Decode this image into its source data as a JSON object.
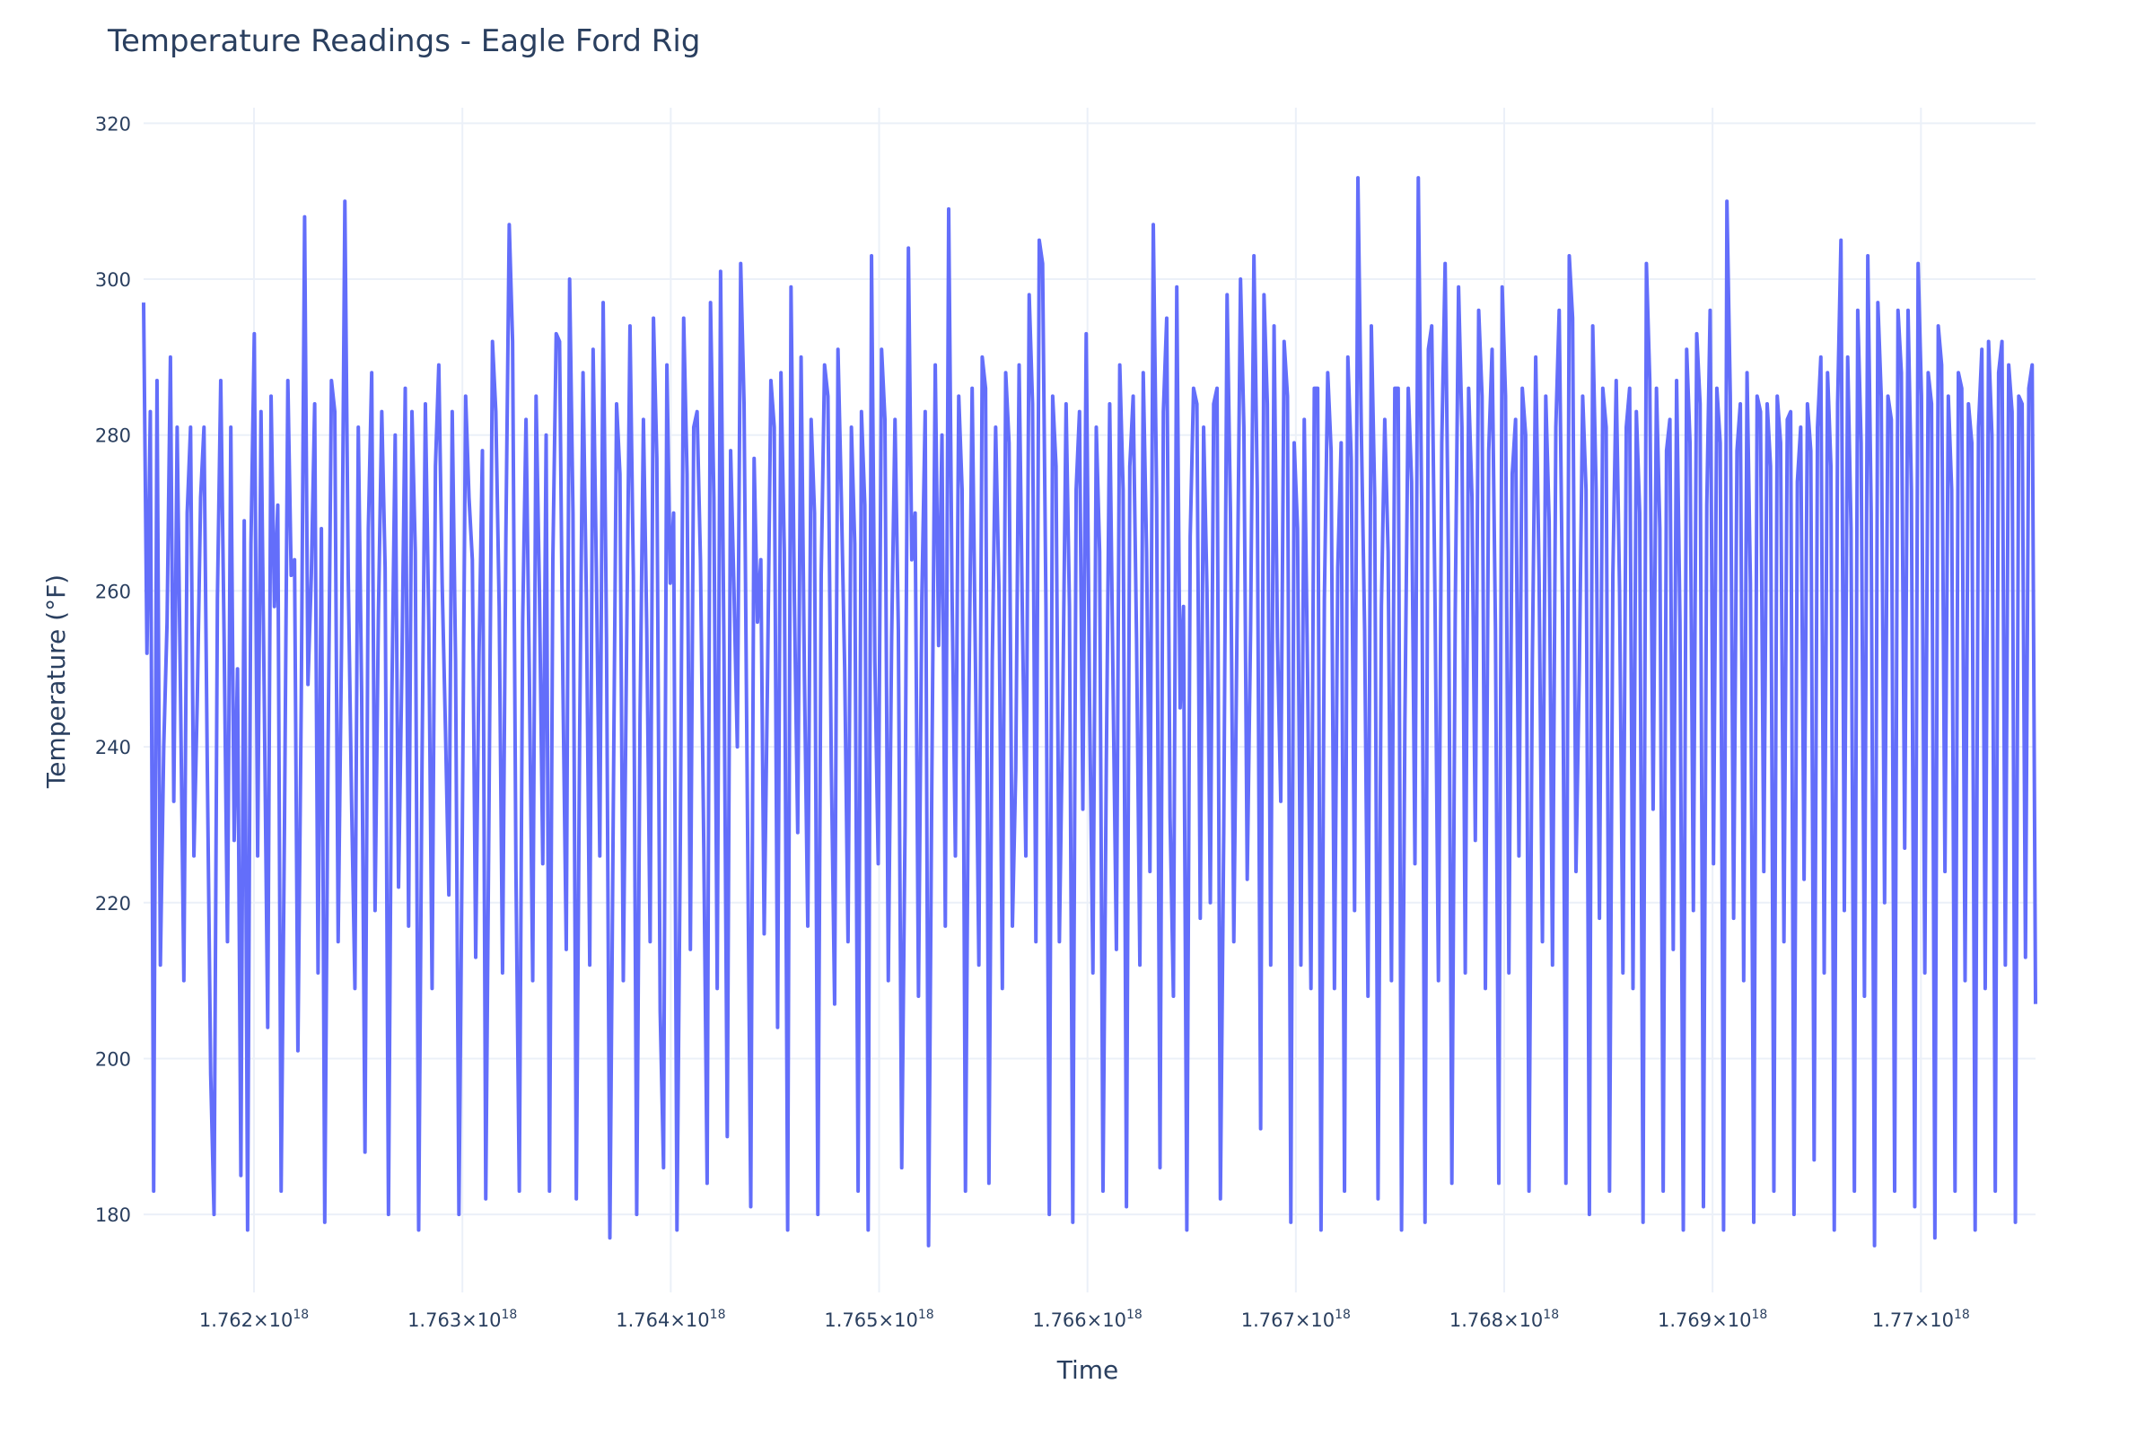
{
  "chart_data": {
    "type": "line",
    "title": "Temperature Readings - Eagle Ford Rig",
    "xlabel": "Time",
    "ylabel": "Temperature (°F)",
    "grid": true,
    "legend": "none",
    "xlim": [
      1.76147e+18,
      1.77055e+18
    ],
    "ylim": [
      170,
      322
    ],
    "x_ticks": [
      {
        "value": 1.762e+18,
        "label": "1.762×10",
        "exp": "18"
      },
      {
        "value": 1.763e+18,
        "label": "1.763×10",
        "exp": "18"
      },
      {
        "value": 1.764e+18,
        "label": "1.764×10",
        "exp": "18"
      },
      {
        "value": 1.765e+18,
        "label": "1.765×10",
        "exp": "18"
      },
      {
        "value": 1.766e+18,
        "label": "1.766×10",
        "exp": "18"
      },
      {
        "value": 1.767e+18,
        "label": "1.767×10",
        "exp": "18"
      },
      {
        "value": 1.768e+18,
        "label": "1.768×10",
        "exp": "18"
      },
      {
        "value": 1.769e+18,
        "label": "1.769×10",
        "exp": "18"
      },
      {
        "value": 1.77e+18,
        "label": "1.77×10",
        "exp": "18"
      }
    ],
    "y_ticks": [
      180,
      200,
      220,
      240,
      260,
      280,
      300,
      320
    ],
    "series": [
      {
        "color": "#636efa",
        "x_start": 1.76147e+18,
        "x_end": 1.77055e+18,
        "values": [
          297,
          252,
          283,
          183,
          287,
          212,
          240,
          256,
          290,
          233,
          281,
          247,
          210,
          270,
          281,
          226,
          246,
          272,
          281,
          237,
          198,
          180,
          259,
          287,
          254,
          215,
          281,
          228,
          250,
          185,
          269,
          178,
          266,
          293,
          226,
          283,
          245,
          204,
          285,
          258,
          271,
          183,
          230,
          287,
          262,
          264,
          201,
          246,
          308,
          248,
          262,
          284,
          211,
          268,
          179,
          240,
          287,
          283,
          215,
          253,
          310,
          262,
          233,
          209,
          281,
          247,
          188,
          268,
          288,
          219,
          257,
          283,
          263,
          180,
          246,
          280,
          222,
          250,
          286,
          217,
          283,
          265,
          178,
          238,
          284,
          256,
          209,
          276,
          289,
          261,
          242,
          221,
          283,
          251,
          180,
          229,
          285,
          272,
          264,
          213,
          252,
          278,
          182,
          234,
          292,
          283,
          258,
          211,
          267,
          307,
          292,
          224,
          183,
          256,
          282,
          249,
          210,
          285,
          260,
          225,
          280,
          183,
          264,
          293,
          292,
          248,
          214,
          300,
          270,
          182,
          242,
          288,
          259,
          212,
          291,
          262,
          226,
          297,
          254,
          177,
          231,
          284,
          275,
          210,
          253,
          294,
          262,
          180,
          244,
          282,
          255,
          215,
          295,
          277,
          206,
          186,
          289,
          261,
          270,
          178,
          228,
          295,
          275,
          214,
          281,
          283,
          264,
          227,
          184,
          297,
          272,
          209,
          301,
          253,
          190,
          278,
          260,
          240,
          302,
          284,
          232,
          181,
          277,
          256,
          264,
          216,
          249,
          287,
          281,
          204,
          288,
          265,
          178,
          299,
          259,
          229,
          290,
          249,
          217,
          282,
          270,
          180,
          262,
          289,
          285,
          238,
          207,
          291,
          272,
          250,
          215,
          281,
          266,
          183,
          283,
          271,
          178,
          303,
          251,
          225,
          291,
          282,
          210,
          254,
          282,
          255,
          186,
          230,
          304,
          264,
          270,
          208,
          259,
          283,
          176,
          237,
          289,
          253,
          280,
          217,
          309,
          260,
          226,
          285,
          273,
          183,
          245,
          286,
          250,
          212,
          290,
          286,
          184,
          251,
          281,
          260,
          209,
          288,
          279,
          217,
          237,
          289,
          256,
          226,
          298,
          284,
          215,
          305,
          302,
          258,
          180,
          285,
          276,
          215,
          245,
          284,
          258,
          179,
          273,
          283,
          232,
          293,
          246,
          211,
          281,
          265,
          183,
          238,
          284,
          248,
          214,
          289,
          273,
          181,
          276,
          285,
          254,
          212,
          288,
          265,
          224,
          307,
          272,
          186,
          283,
          295,
          231,
          208,
          299,
          245,
          258,
          178,
          267,
          286,
          284,
          218,
          281,
          260,
          220,
          284,
          286,
          182,
          229,
          298,
          270,
          215,
          257,
          300,
          281,
          223,
          255,
          303,
          273,
          191,
          298,
          284,
          212,
          294,
          254,
          233,
          292,
          285,
          179,
          279,
          268,
          212,
          282,
          249,
          209,
          286,
          286,
          178,
          259,
          288,
          278,
          209,
          263,
          279,
          183,
          290,
          277,
          219,
          313,
          281,
          255,
          208,
          294,
          272,
          182,
          258,
          282,
          265,
          210,
          286,
          286,
          178,
          243,
          286,
          274,
          225,
          313,
          271,
          179,
          291,
          294,
          258,
          210,
          279,
          302,
          264,
          184,
          257,
          299,
          281,
          211,
          286,
          272,
          228,
          296,
          285,
          209,
          278,
          291,
          255,
          184,
          299,
          285,
          211,
          275,
          282,
          226,
          286,
          280,
          183,
          251,
          290,
          262,
          215,
          285,
          269,
          212,
          281,
          296,
          258,
          184,
          303,
          295,
          224,
          250,
          285,
          273,
          180,
          294,
          273,
          218,
          286,
          281,
          183,
          262,
          287,
          260,
          211,
          281,
          286,
          209,
          283,
          270,
          179,
          302,
          287,
          232,
          286,
          268,
          183,
          278,
          282,
          214,
          287,
          256,
          178,
          291,
          279,
          219,
          293,
          284,
          181,
          271,
          296,
          225,
          286,
          279,
          178,
          310,
          285,
          218,
          278,
          284,
          210,
          288,
          261,
          179,
          285,
          283,
          224,
          284,
          276,
          183,
          285,
          279,
          215,
          282,
          283,
          180,
          274,
          281,
          223,
          284,
          278,
          187,
          281,
          290,
          211,
          288,
          276,
          178,
          284,
          305,
          219,
          290,
          268,
          183,
          296,
          279,
          208,
          303,
          270,
          176,
          297,
          285,
          220,
          285,
          282,
          183,
          296,
          288,
          227,
          296,
          273,
          181,
          302,
          285,
          211,
          288,
          284,
          177,
          294,
          289,
          224,
          285,
          273,
          183,
          288,
          286,
          210,
          284,
          279,
          178,
          281,
          291,
          209,
          292,
          280,
          183,
          288,
          292,
          212,
          289,
          283,
          179,
          285,
          284,
          213,
          286,
          289,
          207
        ]
      }
    ]
  }
}
